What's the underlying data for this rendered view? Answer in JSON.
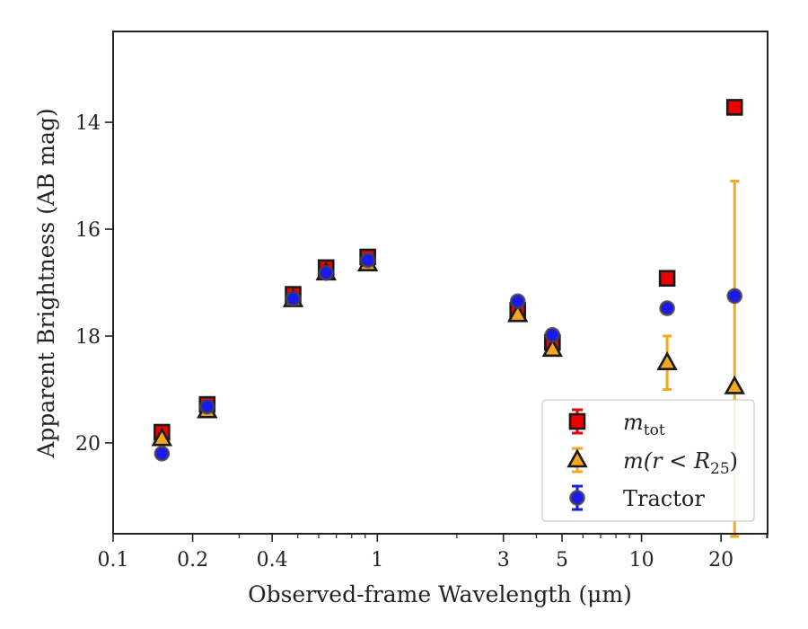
{
  "chart_data": {
    "type": "scatter",
    "title": "",
    "xlabel": "Observed-frame Wavelength (μm)",
    "ylabel": "Apparent Brightness (AB mag)",
    "xscale": "log",
    "xlim": [
      0.1,
      30
    ],
    "ylim": [
      21.7,
      12.3
    ],
    "y_inverted": true,
    "xticks": [
      {
        "value": 0.1,
        "label": "0.1"
      },
      {
        "value": 0.2,
        "label": "0.2"
      },
      {
        "value": 0.4,
        "label": "0.4"
      },
      {
        "value": 1,
        "label": "1"
      },
      {
        "value": 3,
        "label": "3"
      },
      {
        "value": 5,
        "label": "5"
      },
      {
        "value": 10,
        "label": "10"
      },
      {
        "value": 20,
        "label": "20"
      }
    ],
    "yticks": [
      {
        "value": 14,
        "label": "14"
      },
      {
        "value": 16,
        "label": "16"
      },
      {
        "value": 18,
        "label": "18"
      },
      {
        "value": 20,
        "label": "20"
      }
    ],
    "grid": false,
    "legend_position": "bottom-right",
    "series": [
      {
        "name": "m_tot",
        "legend_main": "m",
        "legend_sub": "tot",
        "marker": "square",
        "color": "#ee0000",
        "points": [
          {
            "x": 0.153,
            "y": 19.8,
            "err": 0.05
          },
          {
            "x": 0.227,
            "y": 19.28,
            "err": 0.05
          },
          {
            "x": 0.48,
            "y": 17.22,
            "err": 0.05
          },
          {
            "x": 0.64,
            "y": 16.72,
            "err": 0.05
          },
          {
            "x": 0.92,
            "y": 16.52,
            "err": 0.05
          },
          {
            "x": 3.4,
            "y": 17.52,
            "err": 0.05
          },
          {
            "x": 4.6,
            "y": 18.12,
            "err": 0.05
          },
          {
            "x": 12.5,
            "y": 16.92,
            "err": 0.05
          },
          {
            "x": 22.5,
            "y": 13.72,
            "err": 0.05
          }
        ]
      },
      {
        "name": "m(r < R25)",
        "legend_main": "m(r < R",
        "legend_sub": "25",
        "legend_tail": ")",
        "marker": "triangle",
        "color": "#f5a623",
        "points": [
          {
            "x": 0.153,
            "y": 19.92,
            "err": 0.05
          },
          {
            "x": 0.227,
            "y": 19.4,
            "err": 0.05
          },
          {
            "x": 0.48,
            "y": 17.32,
            "err": 0.05
          },
          {
            "x": 0.64,
            "y": 16.82,
            "err": 0.05
          },
          {
            "x": 0.92,
            "y": 16.65,
            "err": 0.05
          },
          {
            "x": 3.4,
            "y": 17.6,
            "err": 0.05
          },
          {
            "x": 4.6,
            "y": 18.25,
            "err": 0.05
          },
          {
            "x": 12.5,
            "y": 18.5,
            "err": 0.5
          },
          {
            "x": 22.5,
            "y": 18.95,
            "err": 3.85
          }
        ]
      },
      {
        "name": "Tractor",
        "marker": "circle",
        "color": "#1a1aee",
        "points": [
          {
            "x": 0.153,
            "y": 20.2,
            "err": 0.05
          },
          {
            "x": 0.227,
            "y": 19.32,
            "err": 0.05
          },
          {
            "x": 0.48,
            "y": 17.3,
            "err": 0.05
          },
          {
            "x": 0.64,
            "y": 16.82,
            "err": 0.05
          },
          {
            "x": 0.92,
            "y": 16.58,
            "err": 0.05
          },
          {
            "x": 3.4,
            "y": 17.35,
            "err": 0.05
          },
          {
            "x": 4.6,
            "y": 17.98,
            "err": 0.05
          },
          {
            "x": 12.5,
            "y": 17.48,
            "err": 0.05
          },
          {
            "x": 22.5,
            "y": 17.25,
            "err": 0.05
          }
        ]
      }
    ]
  }
}
